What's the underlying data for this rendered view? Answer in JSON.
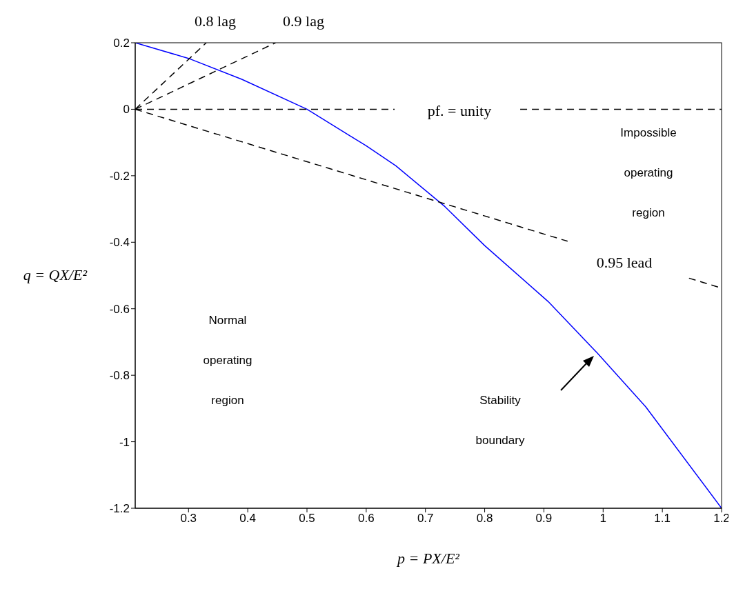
{
  "chart_data": {
    "type": "line",
    "xlabel": "p = PX/E²",
    "ylabel": "q = QX/E²",
    "xlim": [
      0.21,
      1.2
    ],
    "xticks": [
      0.3,
      0.4,
      0.5,
      0.6,
      0.7,
      0.8,
      0.9,
      1,
      1.1,
      1.2
    ],
    "ylim": [
      -1.2,
      0.2
    ],
    "yticks": [
      -1.2,
      -1,
      -0.8,
      -0.6,
      -0.4,
      -0.2,
      0,
      0.2
    ],
    "series": [
      {
        "color": "#0000ff",
        "x": [
          0.21,
          0.3,
          0.39,
          0.5,
          0.6,
          0.65,
          0.733,
          0.8,
          0.907,
          0.99,
          1.072,
          1.2
        ],
        "values": [
          0.2,
          0.153,
          0.09,
          0,
          -0.11,
          -0.17,
          -0.293,
          -0.41,
          -0.578,
          -0.733,
          -0.895,
          -1.2
        ]
      },
      {
        "color": "#000000",
        "line_style": "dashed",
        "x": [
          0.21,
          0.33
        ],
        "values": [
          0,
          0.2
        ]
      },
      {
        "color": "#000000",
        "line_style": "dashed",
        "x": [
          0.21,
          0.447
        ],
        "values": [
          0,
          0.2
        ]
      },
      {
        "color": "#000000",
        "line_style": "dashed",
        "x": [
          0.21,
          0.648,
          0.75,
          0.86,
          1.2
        ],
        "values": [
          0,
          0,
          null,
          0,
          0
        ]
      },
      {
        "color": "#000000",
        "line_style": "dashed",
        "x": [
          0.21,
          0.94,
          1.04,
          1.145,
          1.2
        ],
        "values": [
          0,
          -0.397,
          null,
          -0.508,
          -0.538
        ]
      }
    ],
    "annotations": [
      "0.8 lag",
      "0.9 lag",
      "pf. = unity",
      "0.95 lead",
      "Impossible operating region",
      "Normal operating region",
      "Stability boundary"
    ]
  }
}
